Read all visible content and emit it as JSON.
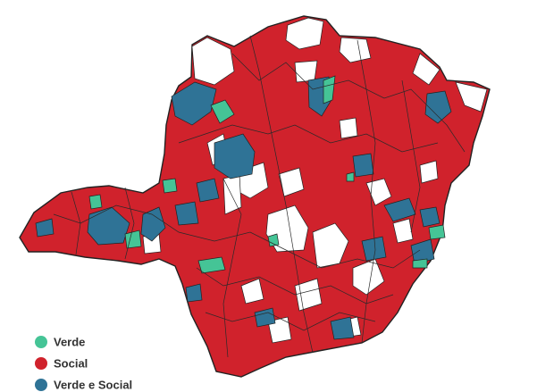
{
  "legend": [
    {
      "label": "Verde",
      "color": "#45c496"
    },
    {
      "label": "Social",
      "color": "#d0222c"
    },
    {
      "label": "Verde e Social",
      "color": "#2f7396"
    }
  ]
}
